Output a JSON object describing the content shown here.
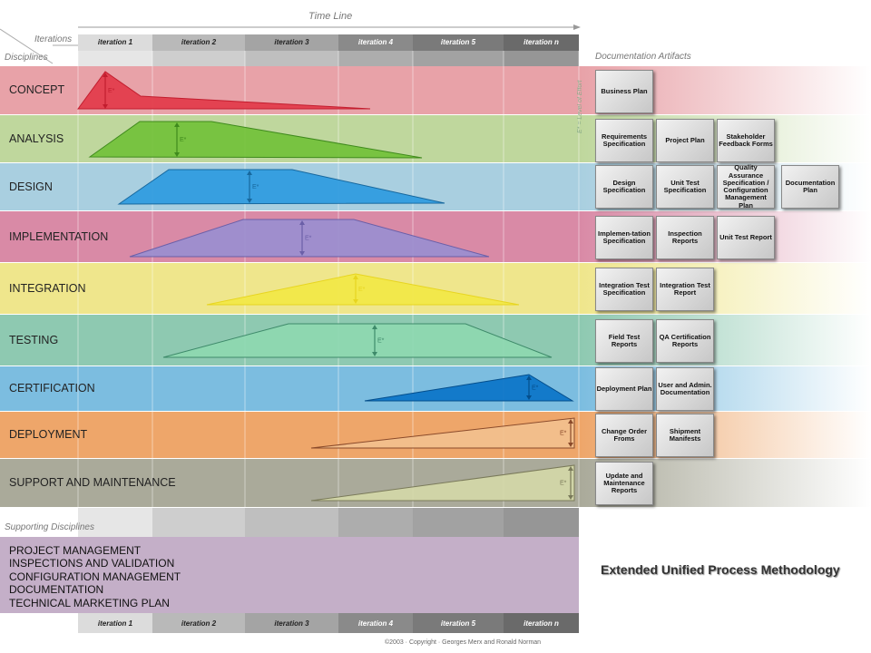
{
  "header": {
    "timeline": "Time Line",
    "iterations": "Iterations",
    "disciplines": "Disciplines",
    "documentation_artifacts": "Documentation Artifacts",
    "supporting_disciplines": "Supporting Disciplines"
  },
  "iterations": [
    "iteration 1",
    "iteration 2",
    "iteration 3",
    "iteration 4",
    "iteration 5",
    "iteration n"
  ],
  "effort_label": "E* = Level of Effort",
  "effort_marker": "E*",
  "disciplines": [
    {
      "name": "CONCEPT",
      "color": "#e8a2a8"
    },
    {
      "name": "ANALYSIS",
      "color": "#bfd79d"
    },
    {
      "name": "DESIGN",
      "color": "#a9cfe0"
    },
    {
      "name": "IMPLEMENTATION",
      "color": "#d98aa6"
    },
    {
      "name": "INTEGRATION",
      "color": "#efe68c"
    },
    {
      "name": "TESTING",
      "color": "#8ec9b1"
    },
    {
      "name": "CERTIFICATION",
      "color": "#7cbde0"
    },
    {
      "name": "DEPLOYMENT",
      "color": "#eea66a"
    },
    {
      "name": "SUPPORT AND MAINTENANCE",
      "color": "#aaaa9a"
    }
  ],
  "artifacts": [
    [
      "Business Plan"
    ],
    [
      "Requirements Specification",
      "Project Plan",
      "Stakeholder Feedback Forms"
    ],
    [
      "Design Specification",
      "Unit Test Specification",
      "Quality Assurance Specification / Configuration Management Plan",
      "Documentation Plan"
    ],
    [
      "Implemen-tation Specification",
      "Inspection Reports",
      "Unit Test Report"
    ],
    [
      "Integration Test Specification",
      "Integration Test Report"
    ],
    [
      "Field Test Reports",
      "QA Certification Reports"
    ],
    [
      "Deployment Plan",
      "User and Admin. Documentation"
    ],
    [
      "Change Order Froms",
      "Shipment Manifests"
    ],
    [
      "Update and Maintenance Reports"
    ]
  ],
  "supporting": [
    "PROJECT MANAGEMENT",
    "INSPECTIONS AND VALIDATION",
    "CONFIGURATION MANAGEMENT",
    "DOCUMENTATION",
    "TECHNICAL MARKETING PLAN"
  ],
  "title": "Extended Unified Process Methodology",
  "copyright": "©2003 · Copyright · Georges Merx and Ronald Norman",
  "colors": {
    "concept": "#e23a4a",
    "analysis": "#72c13a",
    "design": "#2e9be0",
    "implementation": "#9a8ed0",
    "integration": "#f2e845",
    "testing": "#8ed8b0",
    "certification": "#0a74c8",
    "deployment": "#f2c08e",
    "support": "#d4d8a8"
  }
}
